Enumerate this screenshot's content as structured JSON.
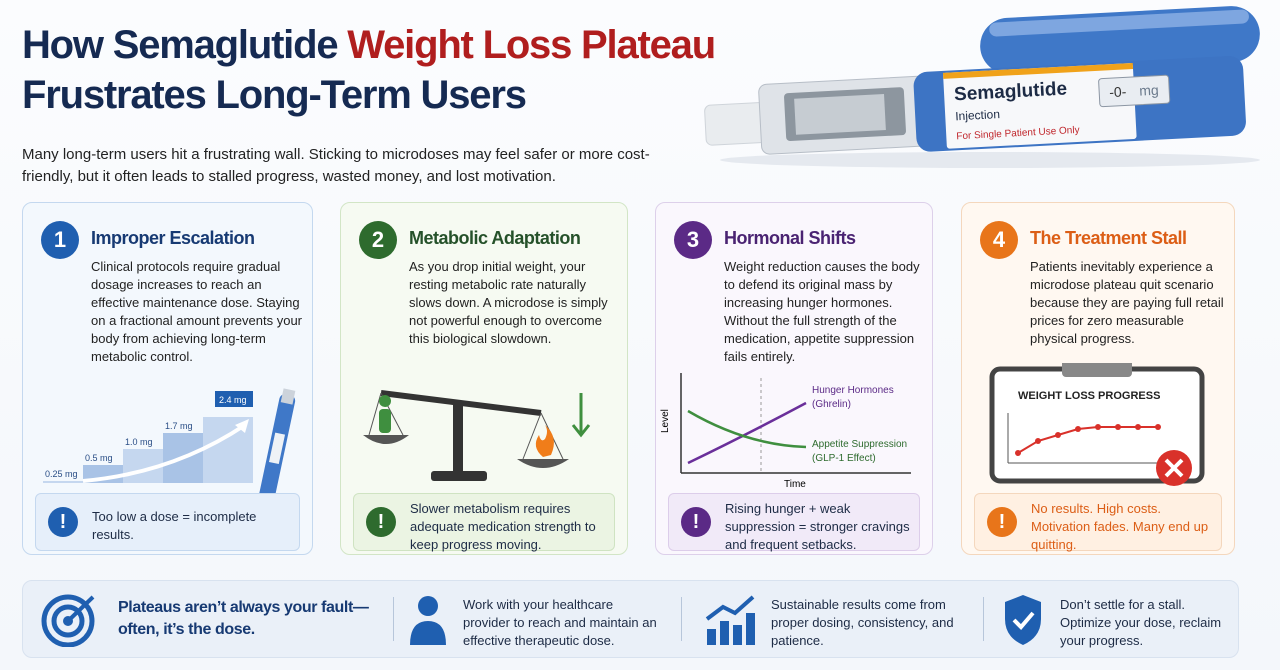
{
  "title": {
    "part1": "How Semaglutide ",
    "highlight": "Weight Loss Plateau",
    "line2": "Frustrates Long-Term Users"
  },
  "intro": "Many long-term users hit a frustrating wall. Sticking to microdoses may feel safer or more cost-friendly, but it often leads to stalled progress, wasted money, and lost motivation.",
  "pen": {
    "brand": "Semaglutide",
    "subtitle": "Injection",
    "warning": "For Single Patient Use Only",
    "dose_display": "-0-",
    "unit": "mg"
  },
  "cards": [
    {
      "number": "1",
      "title": "Improper Escalation",
      "body": "Clinical protocols require gradual dosage increases to reach an effective maintenance dose. Staying on a fractional amount prevents your body from achieving long-term metabolic control.",
      "note": "Too low a dose = incomplete results.",
      "graphic": {
        "doses": [
          "0.25 mg",
          "0.5 mg",
          "1.0 mg",
          "1.7 mg",
          "2.4 mg"
        ]
      }
    },
    {
      "number": "2",
      "title": "Metabolic Adaptation",
      "body": "As you drop initial weight, your resting metabolic rate naturally slows down. A microdose is simply not powerful enough to overcome this biological slowdown.",
      "note": "Slower metabolism requires adequate medication strength to keep progress moving."
    },
    {
      "number": "3",
      "title": "Hormonal Shifts",
      "body": "Weight reduction causes the body to defend its original mass by increasing hunger hormones. Without the full strength of the medication, appetite suppression fails entirely.",
      "note": "Rising hunger + weak suppression = stronger cravings and frequent setbacks.",
      "graphic": {
        "y_label": "Level",
        "x_label": "Time",
        "line1": "Hunger Hormones",
        "line1_sub": "(Ghrelin)",
        "line2": "Appetite Suppression",
        "line2_sub": "(GLP-1 Effect)"
      }
    },
    {
      "number": "4",
      "title": "The Treatment Stall",
      "body": "Patients inevitably experience a microdose plateau quit scenario because they are paying full retail prices for zero measurable physical progress.",
      "note": "No results. High costs. Motivation fades. Many end up quitting.",
      "graphic": {
        "board_title": "WEIGHT LOSS PROGRESS"
      }
    }
  ],
  "footer": [
    "Plateaus aren’t always your fault—often, it’s the dose.",
    "Work with your healthcare provider to reach and maintain an effective therapeutic dose.",
    "Sustainable results come from proper dosing, consistency, and patience.",
    "Don’t settle for a stall. Optimize your dose, reclaim your progress."
  ]
}
